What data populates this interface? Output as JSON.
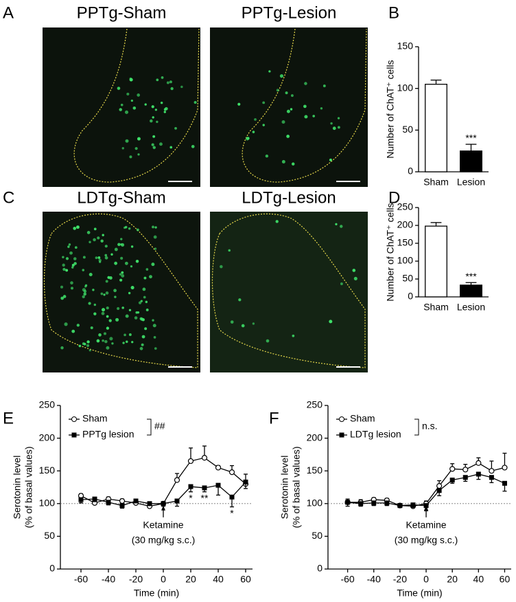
{
  "panel_labels": [
    "A",
    "B",
    "C",
    "D",
    "E",
    "F"
  ],
  "image_titles": [
    "PPTg-Sham",
    "PPTg-Lesion",
    "LDTg-Sham",
    "LDTg-Lesion"
  ],
  "chart_data": [
    {
      "type": "bar",
      "ylabel": "Number of ChAT⁺ cells",
      "categories": [
        "Sham",
        "Lesion"
      ],
      "values": [
        105,
        25
      ],
      "errors": [
        5,
        8
      ],
      "colors": [
        "#ffffff",
        "#000000"
      ],
      "ylim": [
        0,
        150
      ],
      "yticks": [
        0,
        50,
        100,
        150
      ],
      "annotations": [
        null,
        "***"
      ]
    },
    {
      "type": "bar",
      "ylabel": "Number of ChAT⁺ cells",
      "categories": [
        "Sham",
        "Lesion"
      ],
      "values": [
        198,
        33
      ],
      "errors": [
        10,
        7
      ],
      "colors": [
        "#ffffff",
        "#000000"
      ],
      "ylim": [
        0,
        250
      ],
      "yticks": [
        0,
        50,
        100,
        150,
        200,
        250
      ],
      "annotations": [
        null,
        "***"
      ]
    },
    {
      "type": "line",
      "xlabel": "Time (min)",
      "ylabel": [
        "Serotonin level",
        "(% of basal values)"
      ],
      "x": [
        -60,
        -50,
        -40,
        -30,
        -20,
        -10,
        0,
        10,
        20,
        30,
        40,
        50,
        60
      ],
      "xlim": [
        -75,
        65
      ],
      "xticks": [
        -60,
        -40,
        -20,
        0,
        20,
        40,
        60
      ],
      "ylim": [
        0,
        250
      ],
      "yticks": [
        0,
        50,
        100,
        150,
        200,
        250
      ],
      "reference": 100,
      "arrow_at": 0,
      "arrow_labels": [
        "Ketamine",
        "(30 mg/kg s.c.)"
      ],
      "comparison_label": "##",
      "series": [
        {
          "name": "Sham",
          "color": "#000000",
          "marker": "open-circle",
          "values": [
            112,
            101,
            107,
            104,
            101,
            96,
            100,
            136,
            165,
            170,
            155,
            148,
            130
          ],
          "errors": [
            3,
            3,
            3,
            3,
            3,
            3,
            3,
            10,
            20,
            18,
            3,
            10,
            15
          ]
        },
        {
          "name": "PPTg lesion",
          "color": "#000000",
          "marker": "filled-square",
          "values": [
            106,
            107,
            102,
            97,
            104,
            100,
            100,
            104,
            126,
            124,
            128,
            110,
            133
          ],
          "errors": [
            5,
            4,
            4,
            4,
            3,
            3,
            4,
            8,
            8,
            6,
            15,
            15,
            10
          ],
          "significance": [
            null,
            null,
            null,
            null,
            null,
            null,
            null,
            null,
            "*",
            "**",
            null,
            "*",
            null
          ]
        }
      ]
    },
    {
      "type": "line",
      "xlabel": "Time (min)",
      "ylabel": [
        "Serotonin level",
        "(% of basal values)"
      ],
      "x": [
        -60,
        -50,
        -40,
        -30,
        -20,
        -10,
        0,
        10,
        20,
        30,
        40,
        50,
        60
      ],
      "xlim": [
        -75,
        65
      ],
      "xticks": [
        -60,
        -40,
        -20,
        0,
        20,
        40,
        60
      ],
      "ylim": [
        0,
        250
      ],
      "yticks": [
        0,
        50,
        100,
        150,
        200,
        250
      ],
      "reference": 100,
      "arrow_at": 0,
      "arrow_labels": [
        "Ketamine",
        "(30 mg/kg s.c.)"
      ],
      "comparison_label": "n.s.",
      "series": [
        {
          "name": "Sham",
          "color": "#000000",
          "marker": "open-circle",
          "values": [
            102,
            102,
            106,
            105,
            97,
            96,
            100,
            127,
            153,
            152,
            162,
            150,
            155
          ],
          "errors": [
            5,
            4,
            3,
            3,
            3,
            3,
            4,
            8,
            8,
            8,
            8,
            15,
            22
          ]
        },
        {
          "name": "LDTg lesion",
          "color": "#000000",
          "marker": "filled-square",
          "values": [
            102,
            100,
            101,
            101,
            97,
            98,
            97,
            120,
            136,
            140,
            145,
            140,
            131
          ],
          "errors": [
            6,
            4,
            4,
            4,
            3,
            4,
            8,
            8,
            5,
            6,
            8,
            8,
            12
          ]
        }
      ]
    }
  ]
}
